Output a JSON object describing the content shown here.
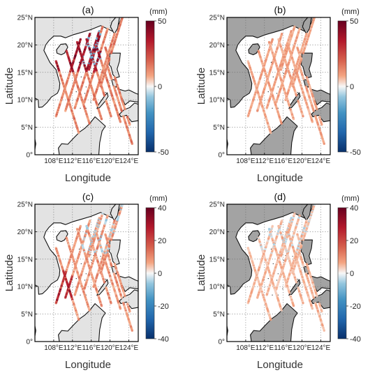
{
  "figure": {
    "panels": [
      {
        "label": "(a)",
        "unit": "(mm)",
        "colorbar_ticks": [
          "50",
          "0",
          "-50"
        ],
        "colorbar_range": [
          -50,
          50
        ],
        "land_color": "#e3e3e3",
        "y_label": "Latitude",
        "x_label": "Longitude",
        "y_ticks": [
          "25°N",
          "20°N",
          "15°N",
          "10°N",
          "5°N",
          "0°"
        ],
        "x_ticks": [
          "108°E",
          "112°E",
          "116°E",
          "120°E",
          "124°E"
        ]
      },
      {
        "label": "(b)",
        "unit": "(mm)",
        "colorbar_ticks": [
          "50",
          "0",
          "-50"
        ],
        "colorbar_range": [
          -50,
          50
        ],
        "land_color": "#a3a3a3",
        "y_label": "Latitude",
        "x_label": "Longitude",
        "y_ticks": [
          "25°N",
          "20°N",
          "15°N",
          "10°N",
          "5°N",
          "0°"
        ],
        "x_ticks": [
          "108°E",
          "112°E",
          "116°E",
          "120°E",
          "124°E"
        ]
      },
      {
        "label": "(c)",
        "unit": "(mm)",
        "colorbar_ticks": [
          "40",
          "20",
          "0",
          "-20",
          "-40"
        ],
        "colorbar_range": [
          -40,
          40
        ],
        "land_color": "#e3e3e3",
        "y_label": "Latitude",
        "x_label": "Longitude",
        "y_ticks": [
          "25°N",
          "20°N",
          "15°N",
          "10°N",
          "5°N",
          "0°"
        ],
        "x_ticks": [
          "108°E",
          "112°E",
          "116°E",
          "120°E",
          "124°E"
        ]
      },
      {
        "label": "(d)",
        "unit": "(mm)",
        "colorbar_ticks": [
          "40",
          "20",
          "0",
          "-20",
          "-40"
        ],
        "colorbar_range": [
          -40,
          40
        ],
        "land_color": "#a3a3a3",
        "y_label": "Latitude",
        "x_label": "Longitude",
        "y_ticks": [
          "25°N",
          "20°N",
          "15°N",
          "10°N",
          "5°N",
          "0°"
        ],
        "x_ticks": [
          "108°E",
          "112°E",
          "116°E",
          "120°E",
          "124°E"
        ]
      }
    ],
    "colormap": [
      "#08306b",
      "#2166ac",
      "#4393c3",
      "#92c5de",
      "#f7f7f7",
      "#f4a582",
      "#d6604d",
      "#b2182b",
      "#67001f"
    ],
    "ocean_color": "#ffffff",
    "grid": "dotted"
  }
}
